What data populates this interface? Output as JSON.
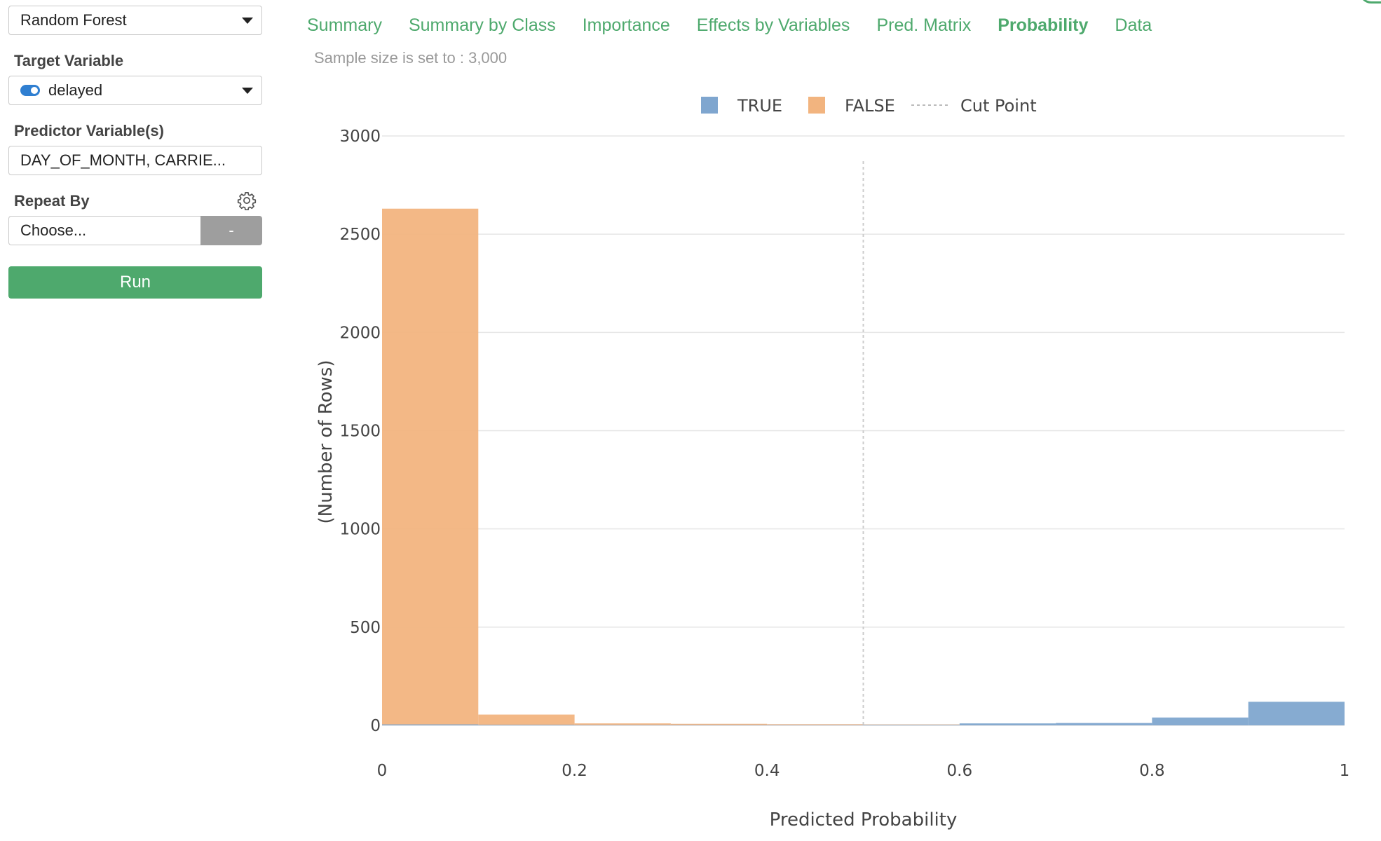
{
  "sidebar": {
    "model_select": "Random Forest",
    "target_label": "Target Variable",
    "target_value": "delayed",
    "predictor_label": "Predictor Variable(s)",
    "predictor_value": "DAY_OF_MONTH, CARRIE...",
    "repeat_label": "Repeat By",
    "repeat_placeholder": "Choose...",
    "repeat_button": "-",
    "run_button": "Run"
  },
  "tabs": [
    {
      "label": "Summary",
      "active": false
    },
    {
      "label": "Summary by Class",
      "active": false
    },
    {
      "label": "Importance",
      "active": false
    },
    {
      "label": "Effects by Variables",
      "active": false
    },
    {
      "label": "Pred. Matrix",
      "active": false
    },
    {
      "label": "Probability",
      "active": true
    },
    {
      "label": "Data",
      "active": false
    }
  ],
  "sample_note": "Sample size is set to : 3,000",
  "colors": {
    "accent": "#4ea96d",
    "true_series": "#7fa6cf",
    "false_series": "#f2b47f",
    "cut_line": "#cccccc"
  },
  "chart_data": {
    "type": "bar",
    "xlabel": "Predicted Probability",
    "ylabel": "(Number of Rows)",
    "xlim": [
      0,
      1
    ],
    "ylim": [
      0,
      3000
    ],
    "x_ticks": [
      "0",
      "0.2",
      "0.4",
      "0.6",
      "0.8",
      "1"
    ],
    "y_ticks": [
      "0",
      "500",
      "1000",
      "1500",
      "2000",
      "2500",
      "3000"
    ],
    "bins": [
      [
        0,
        0.1
      ],
      [
        0.1,
        0.2
      ],
      [
        0.2,
        0.3
      ],
      [
        0.3,
        0.4
      ],
      [
        0.4,
        0.5
      ],
      [
        0.5,
        0.6
      ],
      [
        0.6,
        0.7
      ],
      [
        0.7,
        0.8
      ],
      [
        0.8,
        0.9
      ],
      [
        0.9,
        1.0
      ]
    ],
    "series": [
      {
        "name": "FALSE",
        "values": [
          2630,
          55,
          10,
          8,
          6,
          5,
          4,
          3,
          3,
          0
        ]
      },
      {
        "name": "TRUE",
        "values": [
          5,
          3,
          2,
          2,
          2,
          3,
          10,
          12,
          40,
          120
        ]
      }
    ],
    "cut_point": 0.5,
    "legend": [
      "TRUE",
      "FALSE",
      "Cut Point"
    ],
    "legend_position": "top-center",
    "grid": true
  }
}
